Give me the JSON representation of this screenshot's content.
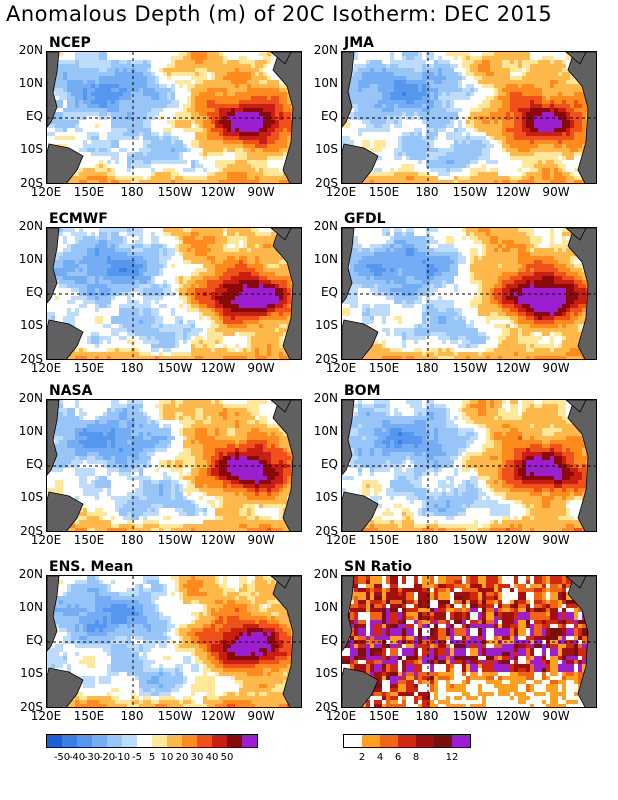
{
  "title": "Anomalous Depth (m) of 20C Isotherm: DEC 2015",
  "chart_data": {
    "type": "heatmap",
    "units": "m",
    "x_ticks": [
      "120E",
      "150E",
      "180",
      "150W",
      "120W",
      "90W"
    ],
    "y_ticks": [
      "20N",
      "10N",
      "EQ",
      "10S",
      "20S"
    ],
    "panels": [
      {
        "name": "NCEP",
        "pattern": "anomaly",
        "strength": 1.0
      },
      {
        "name": "JMA",
        "pattern": "anomaly",
        "strength": 0.95
      },
      {
        "name": "ECMWF",
        "pattern": "anomaly",
        "strength": 1.1
      },
      {
        "name": "GFDL",
        "pattern": "anomaly",
        "strength": 1.15
      },
      {
        "name": "NASA",
        "pattern": "anomaly",
        "strength": 1.05
      },
      {
        "name": "BOM",
        "pattern": "anomaly",
        "strength": 1.0
      },
      {
        "name": "ENS. Mean",
        "pattern": "anomaly",
        "strength": 1.05
      },
      {
        "name": "SN Ratio",
        "pattern": "snr",
        "strength": 1.0
      }
    ],
    "anomaly_colorbar": {
      "labels": [
        "-50",
        "-40",
        "-30",
        "-20",
        "-10",
        "-5",
        "5",
        "10",
        "20",
        "30",
        "40",
        "50"
      ],
      "colors": [
        "#1f5fd6",
        "#3a7ee6",
        "#5596ee",
        "#74adf4",
        "#97c5f8",
        "#bddcfb",
        "#ffffff",
        "#ffe89a",
        "#ffb84a",
        "#ff8a1e",
        "#f0501a",
        "#c81e14",
        "#8a0a0a",
        "#9b1fd1"
      ]
    },
    "snr_colorbar": {
      "labels": [
        "2",
        "4",
        "6",
        "8",
        "12"
      ],
      "colors": [
        "#ffffff",
        "#ffa01e",
        "#f06414",
        "#d2280f",
        "#a01010",
        "#781010",
        "#9b1fd1"
      ]
    },
    "land_color": "#606060"
  }
}
